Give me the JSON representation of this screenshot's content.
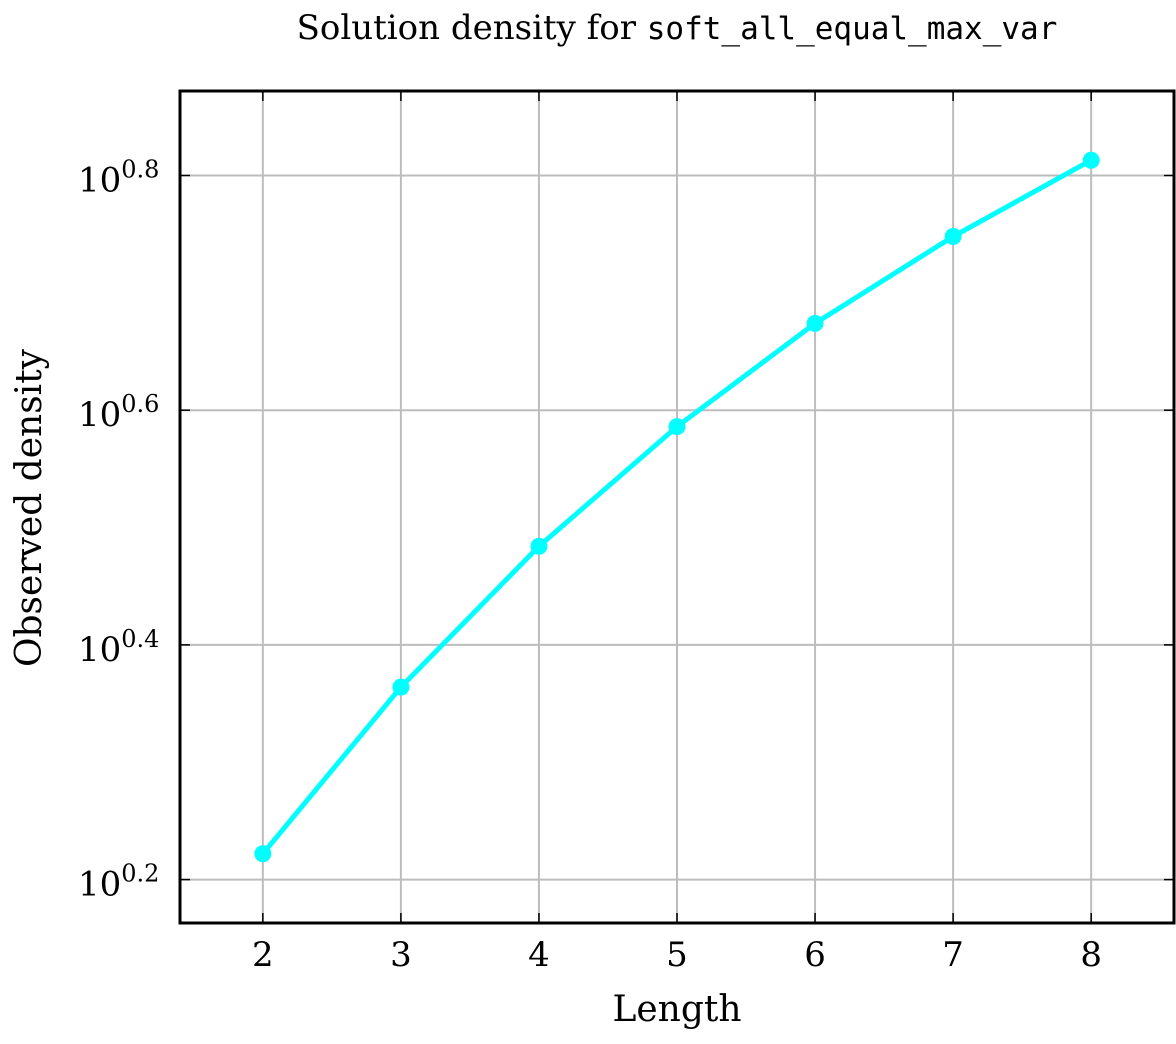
{
  "chart_data": {
    "type": "line",
    "title_prefix": "Solution density for",
    "title_code": "soft_all_equal_max_var",
    "xlabel": "Length",
    "ylabel": "Observed density",
    "yscale": "log10",
    "x": [
      2,
      3,
      4,
      5,
      6,
      7,
      8
    ],
    "x_tick_labels": [
      "2",
      "3",
      "4",
      "5",
      "6",
      "7",
      "8"
    ],
    "y_ticks": [
      0.2,
      0.4,
      0.6,
      0.8
    ],
    "y_tick_base": "10",
    "y_tick_exponents": [
      "0.2",
      "0.4",
      "0.6",
      "0.8"
    ],
    "xlim": [
      1.4,
      8.6
    ],
    "ylim_exponent": [
      0.163,
      0.872
    ],
    "grid": true,
    "series": [
      {
        "color": "#00ffff",
        "marker": "circle",
        "values_log10": [
          0.222,
          0.364,
          0.484,
          0.586,
          0.674,
          0.748,
          0.813
        ],
        "values": [
          1.667,
          2.312,
          3.048,
          3.855,
          4.721,
          5.598,
          6.501
        ]
      }
    ]
  }
}
